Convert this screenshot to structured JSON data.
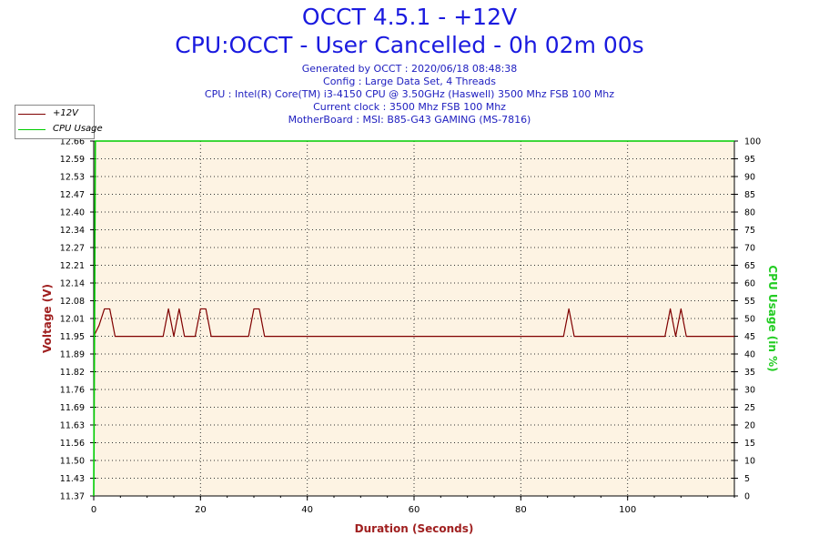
{
  "header": {
    "title": "OCCT 4.5.1 - +12V",
    "subtitle": "CPU:OCCT - User Cancelled - 0h 02m 00s",
    "info": [
      "Generated by OCCT : 2020/06/18 08:48:38",
      "Config : Large Data Set, 4 Threads",
      "CPU : Intel(R) Core(TM) i3-4150 CPU @ 3.50GHz (Haswell) 3500 Mhz FSB 100 Mhz",
      "Current clock : 3500 Mhz FSB 100 Mhz",
      "MotherBoard : MSI: B85-G43 GAMING (MS-7816)"
    ]
  },
  "colors": {
    "voltage": "#800000",
    "cpu": "#00cc00",
    "plot_bg": "#fdf3e3",
    "grid": "#333333",
    "title": "#1a1adf"
  },
  "chart_data": {
    "type": "line",
    "title": "OCCT 4.5.1 - +12V",
    "xlabel": "Duration (Seconds)",
    "ylabel_left": "Voltage (V)",
    "ylabel_right": "CPU Usage (in %)",
    "xlim": [
      0,
      120
    ],
    "ylim_left": [
      11.37,
      12.66
    ],
    "ylim_right": [
      0,
      100
    ],
    "x_ticks": [
      "0",
      "20",
      "40",
      "60",
      "80",
      "100"
    ],
    "y_ticks_left": [
      "11.37",
      "11.43",
      "11.50",
      "11.56",
      "11.63",
      "11.69",
      "11.76",
      "11.82",
      "11.89",
      "11.95",
      "12.01",
      "12.08",
      "12.14",
      "12.21",
      "12.27",
      "12.34",
      "12.40",
      "12.47",
      "12.53",
      "12.59",
      "12.66"
    ],
    "y_ticks_right": [
      "0",
      "5",
      "10",
      "15",
      "20",
      "25",
      "30",
      "35",
      "40",
      "45",
      "50",
      "55",
      "60",
      "65",
      "70",
      "75",
      "80",
      "85",
      "90",
      "95",
      "100"
    ],
    "grid": true,
    "legend_position": "top-left",
    "series": [
      {
        "name": "+12V",
        "axis": "left",
        "color": "#800000",
        "x": [
          0,
          1,
          2,
          3,
          4,
          13,
          14,
          15,
          16,
          17,
          18,
          19,
          20,
          21,
          22,
          23,
          29,
          30,
          31,
          32,
          88,
          89,
          90,
          91,
          107,
          108,
          109,
          110,
          111,
          112,
          120
        ],
        "y": [
          11.95,
          11.99,
          12.05,
          12.05,
          11.95,
          11.95,
          12.05,
          11.95,
          12.05,
          11.95,
          11.95,
          11.95,
          12.05,
          12.05,
          11.95,
          11.95,
          11.95,
          12.05,
          12.05,
          11.95,
          11.95,
          12.05,
          11.95,
          11.95,
          11.95,
          12.05,
          11.95,
          12.05,
          11.95,
          11.95,
          11.95
        ]
      },
      {
        "name": "CPU Usage",
        "axis": "right",
        "color": "#00cc00",
        "x": [
          0,
          0.3,
          120
        ],
        "y": [
          0,
          100,
          100
        ]
      }
    ]
  }
}
